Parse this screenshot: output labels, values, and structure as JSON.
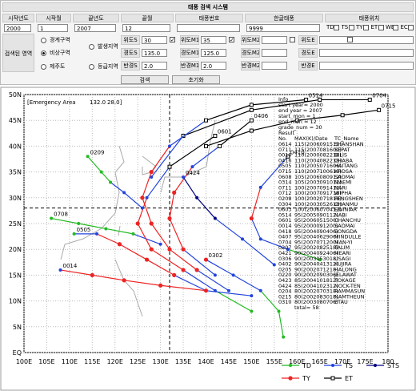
{
  "form": {
    "title": "태풍 검색 시스템",
    "headers": [
      "시작년도",
      "시작월",
      "끝년도",
      "끝월",
      "태풍번호",
      "한글태풍",
      "태풍위치"
    ],
    "values": [
      "2000",
      "1",
      "2007",
      "12"
    ],
    "korean_name": "9999",
    "position_checks": [
      "TD",
      "TS",
      "TY",
      "ET",
      "WE",
      "EC"
    ],
    "area_label": "검색된 영역",
    "area_options": [
      "경계구역",
      "발생지역",
      "비상구역",
      "제주도",
      "등급지역"
    ],
    "selected_area": 2,
    "fields": [
      [
        {
          "label": "위도S",
          "value": "30",
          "checked": true
        },
        {
          "label": "위도M1",
          "value": "35",
          "checked": true
        },
        {
          "label": "위도M2",
          "checked": false
        },
        {
          "label": "위도E",
          "checked": false
        }
      ],
      [
        {
          "label": "경도S",
          "value": "135.0"
        },
        {
          "label": "경도M1",
          "value": "125.0"
        },
        {
          "label": "경도M2"
        },
        {
          "label": "경도E"
        }
      ],
      [
        {
          "label": "반경S",
          "value": "2.0"
        },
        {
          "label": "반경M1",
          "value": "2.0"
        },
        {
          "label": "반경M2"
        },
        {
          "label": "반경E"
        }
      ]
    ],
    "buttons": [
      "검색",
      "초기화"
    ]
  },
  "chart_data": {
    "type": "track",
    "xlim": [
      100,
      180
    ],
    "ylim": [
      0,
      50
    ],
    "grid": true,
    "xticks": [
      {
        "value": 100,
        "label": "100E"
      },
      {
        "value": 105,
        "label": "105E"
      },
      {
        "value": 110,
        "label": "110E"
      },
      {
        "value": 115,
        "label": "115E"
      },
      {
        "value": 120,
        "label": "120E"
      },
      {
        "value": 125,
        "label": "125E"
      },
      {
        "value": 130,
        "label": "130E"
      },
      {
        "value": 135,
        "label": "135E"
      },
      {
        "value": 140,
        "label": "140E"
      },
      {
        "value": 145,
        "label": "145E"
      },
      {
        "value": 150,
        "label": "150E"
      },
      {
        "value": 155,
        "label": "155E"
      },
      {
        "value": 160,
        "label": "160E"
      },
      {
        "value": 165,
        "label": "165E"
      },
      {
        "value": 170,
        "label": "170E"
      },
      {
        "value": 175,
        "label": "175E"
      },
      {
        "value": 180,
        "label": "180"
      }
    ],
    "yticks": [
      {
        "value": 0,
        "label": "EQ"
      },
      {
        "value": 5,
        "label": "5N"
      },
      {
        "value": 10,
        "label": "10N"
      },
      {
        "value": 15,
        "label": "15N"
      },
      {
        "value": 20,
        "label": "20N"
      },
      {
        "value": 25,
        "label": "25N"
      },
      {
        "value": 30,
        "label": "30N"
      },
      {
        "value": 35,
        "label": "35N"
      },
      {
        "value": 40,
        "label": "40N"
      },
      {
        "value": 45,
        "label": "45N"
      },
      {
        "value": 50,
        "label": "50N"
      }
    ],
    "emergency": {
      "title": "[Emergency Area",
      "x": {
        "value": 132,
        "label": "132.0"
      },
      "y": {
        "value": 28,
        "label": "28.0]"
      }
    },
    "grades": [
      {
        "name": "TD",
        "color": "#22bb22"
      },
      {
        "name": "TS",
        "color": "#2244dd"
      },
      {
        "name": "STS",
        "color": "#000080"
      },
      {
        "name": "TY",
        "color": "#ee2222"
      },
      {
        "name": "ET",
        "color": "#000000"
      }
    ],
    "series": [
      {
        "name": "0715",
        "x": [
          140,
          150,
          160,
          170,
          178
        ],
        "y": [
          40,
          43,
          45,
          46,
          47
        ],
        "grades": [
          "ET",
          "ET",
          "ET",
          "ET",
          "ET"
        ]
      },
      {
        "name": "0704",
        "x": [
          128,
          135,
          150,
          165,
          176
        ],
        "y": [
          34,
          42,
          47,
          49,
          49
        ],
        "grades": [
          "TS",
          "ET",
          "ET",
          "ET",
          "ET"
        ]
      },
      {
        "name": "0708",
        "x": [
          130,
          124,
          118,
          112,
          106
        ],
        "y": [
          21,
          23,
          24,
          25,
          26
        ],
        "grades": [
          "TS",
          "TD",
          "TD",
          "TD",
          "TD"
        ]
      },
      {
        "name": "0601",
        "x": [
          150,
          142,
          135,
          128,
          125,
          127,
          132,
          142
        ],
        "y": [
          8,
          12,
          16,
          20,
          25,
          30,
          36,
          42
        ],
        "grades": [
          "TD",
          "TS",
          "TY",
          "TY",
          "TY",
          "TS",
          "ET",
          "ET"
        ]
      },
      {
        "name": "0514",
        "x": [
          145,
          138,
          132,
          128,
          126,
          128,
          132,
          140,
          150,
          162
        ],
        "y": [
          12,
          16,
          20,
          25,
          30,
          35,
          40,
          45,
          48,
          49
        ],
        "grades": [
          "TS",
          "TY",
          "TY",
          "TY",
          "TY",
          "TY",
          "TS",
          "ET",
          "ET",
          "ET"
        ]
      },
      {
        "name": "0505",
        "x": [
          140,
          133,
          127,
          121,
          116,
          111
        ],
        "y": [
          12,
          15,
          18,
          21,
          23,
          23
        ],
        "grades": [
          "TS",
          "TY",
          "TY",
          "TY",
          "TS",
          "TD"
        ]
      },
      {
        "name": "0014",
        "x": [
          150,
          140,
          130,
          122,
          115,
          108
        ],
        "y": [
          11,
          12,
          13,
          14,
          15,
          16
        ],
        "grades": [
          "TS",
          "TY",
          "TY",
          "TY",
          "TY",
          "TS"
        ]
      },
      {
        "name": "0302",
        "x": [
          157,
          156,
          152,
          146,
          140
        ],
        "y": [
          3,
          8,
          12,
          15,
          18
        ],
        "grades": [
          "TD",
          "TD",
          "TS",
          "TS",
          "TY"
        ]
      },
      {
        "name": "0410",
        "x": [
          165,
          158,
          152,
          150,
          152,
          158
        ],
        "y": [
          18,
          20,
          22,
          26,
          32,
          38
        ],
        "grades": [
          "TD",
          "TS",
          "TS",
          "TY",
          "TS",
          "ET"
        ]
      },
      {
        "name": "0406",
        "x": [
          142,
          135,
          132,
          133,
          137,
          143,
          150
        ],
        "y": [
          15,
          20,
          26,
          31,
          36,
          40,
          45
        ],
        "grades": [
          "TS",
          "TY",
          "TY",
          "TY",
          "TS",
          "ET",
          "ET"
        ]
      },
      {
        "name": "0209",
        "x": [
          126,
          122,
          119,
          117,
          114
        ],
        "y": [
          28,
          31,
          33,
          35,
          38
        ],
        "grades": [
          "TS",
          "TS",
          "TD",
          "TD",
          "TD"
        ]
      },
      {
        "name": "0424",
        "x": [
          155,
          148,
          142,
          138,
          135
        ],
        "y": [
          17,
          22,
          26,
          30,
          34
        ],
        "grades": [
          "TS",
          "TS",
          "STS",
          "STS",
          "TS"
        ]
      }
    ],
    "info": [
      "Info",
      "start year= 2000",
      "end year = 2007",
      "start_mon = 1",
      "end_mon = 12",
      "grade_num = 30",
      "Result"
    ],
    "result_header": [
      "No.",
      "MAX(K)/Date",
      "TC_Name"
    ],
    "results": [
      [
        "0614",
        "115(2006091515)",
        "SHANSHAN"
      ],
      [
        "0711",
        "115(2007081600)",
        "SEPAT"
      ],
      [
        "0010",
        "110(2000082218)",
        "BILIS"
      ],
      [
        "0416",
        "110(2004082218)",
        "CHABA"
      ],
      [
        "0505",
        "110(2005071606)",
        "HAITANG"
      ],
      [
        "0715",
        "110(2007100618)",
        "KROSA"
      ],
      [
        "0608",
        "105(2006080912)",
        "SAOMAI"
      ],
      [
        "0314",
        "105(2003091012)",
        "MAEMI"
      ],
      [
        "0711",
        "100(2007091412)",
        "NARI"
      ],
      [
        "0712",
        "100(2007091718)",
        "WIPHA"
      ],
      [
        "0208",
        "100(2002071818)",
        "FENGSHEN"
      ],
      [
        "0304",
        "100(2003052618)",
        "CHANMU"
      ],
      [
        "0603",
        "100(2006070412)",
        "EWINIAR"
      ],
      [
        "0514",
        "95(2005090112)",
        "NABI"
      ],
      [
        "0601",
        "95(2006051500)",
        "CHANCHU"
      ],
      [
        "0014",
        "95(2000091200)",
        "SAOMAI"
      ],
      [
        "0418",
        "95(2004090406)",
        "SONGDA"
      ],
      [
        "0407",
        "95(2004062906)",
        "MINDULLE"
      ],
      [
        "0704",
        "95(2007071200)",
        "MAN-YI"
      ],
      [
        "0207",
        "95(2002082518)",
        "TALIM"
      ],
      [
        "0421",
        "90(2004092406)",
        "MEARI"
      ],
      [
        "0306",
        "90(2003053018)",
        "USAGI"
      ],
      [
        "0402",
        "90(2004041312)",
        "KUJIRA"
      ],
      [
        "0205",
        "90(2002071218)",
        "HALONG"
      ],
      [
        "0220",
        "90(2002090306)",
        "JELAWAT"
      ],
      [
        "0423",
        "85(2004101812)",
        "TOKAGE"
      ],
      [
        "0424",
        "85(2004102312)",
        "NOCK-TEN"
      ],
      [
        "0204",
        "80(2002070318)",
        "RAMMASUN"
      ],
      [
        "0215",
        "80(2002083018)",
        "NAMTHEUN"
      ],
      [
        "0310",
        "80(2003080706)",
        "ETAU"
      ]
    ],
    "total": "total= 58"
  }
}
